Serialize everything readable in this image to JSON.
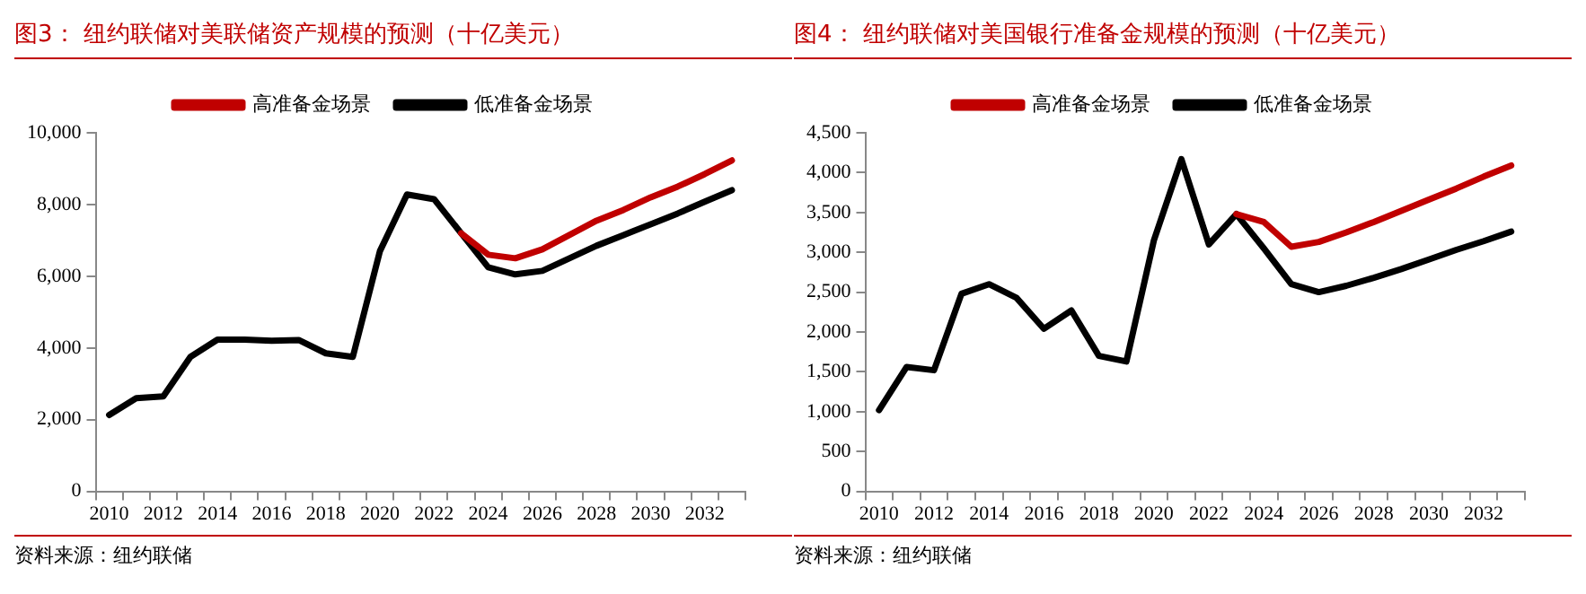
{
  "chart_data": [
    {
      "type": "line",
      "title": "图3：  纽约联储对美联储资产规模的预测（十亿美元）",
      "categories": [
        "2010",
        null,
        "2012",
        null,
        "2014",
        null,
        "2016",
        null,
        "2018",
        null,
        "2020",
        null,
        "2022",
        null,
        "2024",
        null,
        "2026",
        null,
        "2028",
        null,
        "2030",
        null,
        "2032",
        null
      ],
      "series": [
        {
          "name": "高准备金场景",
          "color": "#c00000",
          "values": [
            null,
            null,
            null,
            null,
            null,
            null,
            null,
            null,
            null,
            null,
            null,
            null,
            null,
            7200,
            6600,
            6500,
            6750,
            7150,
            7550,
            7850,
            8200,
            8500,
            8850,
            9230
          ]
        },
        {
          "name": "低准备金场景",
          "color": "#000000",
          "values": [
            2130,
            2600,
            2650,
            3750,
            4230,
            4230,
            4200,
            4220,
            3850,
            3750,
            6700,
            8280,
            8150,
            7200,
            6250,
            6050,
            6150,
            6500,
            6850,
            7150,
            7450,
            7750,
            8080,
            8400
          ]
        }
      ],
      "ylim": [
        0,
        10000
      ],
      "yticks": [
        {
          "value": 0,
          "label": "0"
        },
        {
          "value": 2000,
          "label": "2,000"
        },
        {
          "value": 4000,
          "label": "4,000"
        },
        {
          "value": 6000,
          "label": "6,000"
        },
        {
          "value": 8000,
          "label": "8,000"
        },
        {
          "value": 10000,
          "label": "10,000"
        }
      ],
      "grid": false,
      "legend": "top",
      "marker": "none",
      "line_style": "solid",
      "annotations": [
        "资料来源：纽约联储"
      ]
    },
    {
      "type": "line",
      "title": "图4：  纽约联储对美国银行准备金规模的预测（十亿美元）",
      "categories": [
        "2010",
        null,
        "2012",
        null,
        "2014",
        null,
        "2016",
        null,
        "2018",
        null,
        "2020",
        null,
        "2022",
        null,
        "2024",
        null,
        "2026",
        null,
        "2028",
        null,
        "2030",
        null,
        "2032",
        null
      ],
      "series": [
        {
          "name": "高准备金场景",
          "color": "#c00000",
          "values": [
            null,
            null,
            null,
            null,
            null,
            null,
            null,
            null,
            null,
            null,
            null,
            null,
            null,
            3480,
            3380,
            3070,
            3130,
            3250,
            3380,
            3520,
            3660,
            3800,
            3950,
            4090
          ]
        },
        {
          "name": "低准备金场景",
          "color": "#000000",
          "values": [
            1020,
            1560,
            1520,
            2480,
            2600,
            2430,
            2040,
            2270,
            1700,
            1630,
            3150,
            4170,
            3100,
            3480,
            3050,
            2600,
            2500,
            2580,
            2680,
            2790,
            2910,
            3030,
            3140,
            3260
          ]
        }
      ],
      "ylim": [
        0,
        4500
      ],
      "yticks": [
        {
          "value": 0,
          "label": "0"
        },
        {
          "value": 500,
          "label": "500"
        },
        {
          "value": 1000,
          "label": "1,000"
        },
        {
          "value": 1500,
          "label": "1,500"
        },
        {
          "value": 2000,
          "label": "2,000"
        },
        {
          "value": 2500,
          "label": "2,500"
        },
        {
          "value": 3000,
          "label": "3,000"
        },
        {
          "value": 3500,
          "label": "3,500"
        },
        {
          "value": 4000,
          "label": "4,000"
        },
        {
          "value": 4500,
          "label": "4,500"
        }
      ],
      "grid": false,
      "legend": "top",
      "marker": "none",
      "line_style": "solid",
      "annotations": [
        "资料来源：纽约联储"
      ]
    }
  ]
}
